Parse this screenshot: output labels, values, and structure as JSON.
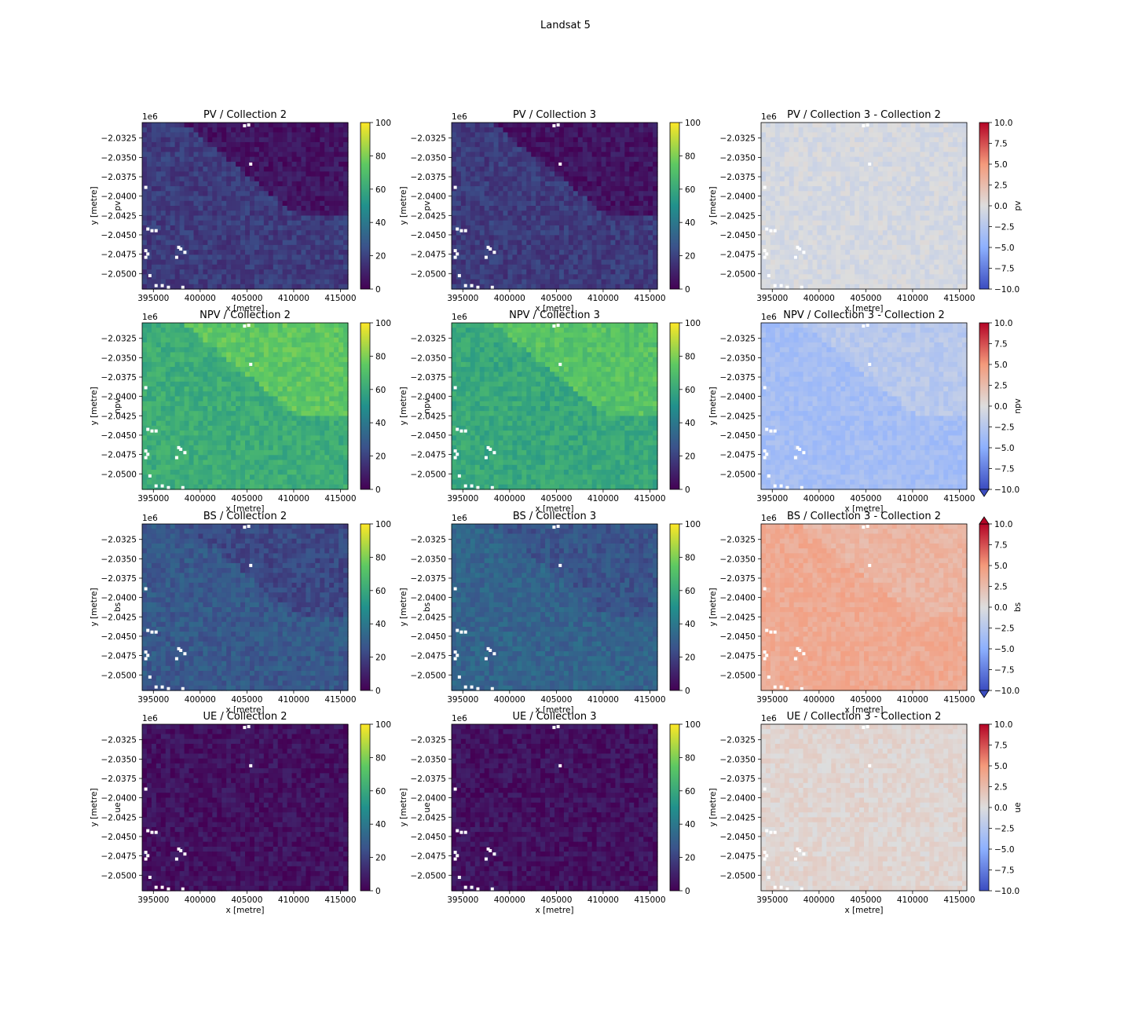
{
  "figure_title": "Landsat 5",
  "chart_data": [
    {
      "type": "heatmap",
      "band": "pv",
      "title": "PV / Collection 2",
      "xlabel": "x [metre]",
      "ylabel": "y [metre]",
      "y_offset_label": "1e6",
      "xticks": [
        "395000",
        "400000",
        "405000",
        "410000",
        "415000"
      ],
      "yticks": [
        "−2.0325",
        "−2.0350",
        "−2.0375",
        "−2.0400",
        "−2.0425",
        "−2.0450",
        "−2.0475",
        "−2.0500"
      ],
      "colorbar": {
        "label": "pv",
        "cmap": "viridis",
        "vmin": 0,
        "vmax": 100,
        "ticks": [
          "0",
          "20",
          "40",
          "60",
          "80",
          "100"
        ]
      },
      "mean_value": 18
    },
    {
      "type": "heatmap",
      "band": "pv",
      "title": "PV / Collection 3",
      "xlabel": "x [metre]",
      "ylabel": "y [metre]",
      "y_offset_label": "1e6",
      "xticks": [
        "395000",
        "400000",
        "405000",
        "410000",
        "415000"
      ],
      "yticks": [
        "−2.0325",
        "−2.0350",
        "−2.0375",
        "−2.0400",
        "−2.0425",
        "−2.0450",
        "−2.0475",
        "−2.0500"
      ],
      "colorbar": {
        "label": "pv",
        "cmap": "viridis",
        "vmin": 0,
        "vmax": 100,
        "ticks": [
          "0",
          "20",
          "40",
          "60",
          "80",
          "100"
        ]
      },
      "mean_value": 18
    },
    {
      "type": "heatmap",
      "band": "pv",
      "title": "PV / Collection 3 - Collection 2",
      "xlabel": "x [metre]",
      "ylabel": "y [metre]",
      "y_offset_label": "1e6",
      "xticks": [
        "395000",
        "400000",
        "405000",
        "410000",
        "415000"
      ],
      "yticks": [
        "−2.0325",
        "−2.0350",
        "−2.0375",
        "−2.0400",
        "−2.0425",
        "−2.0450",
        "−2.0475",
        "−2.0500"
      ],
      "colorbar": {
        "label": "pv",
        "cmap": "coolwarm",
        "vmin": -10,
        "vmax": 10,
        "ticks": [
          "−10.0",
          "−7.5",
          "−5.0",
          "−2.5",
          "0.0",
          "2.5",
          "5.0",
          "7.5",
          "10.0"
        ],
        "extend": "neither"
      },
      "mean_value": -0.5
    },
    {
      "type": "heatmap",
      "band": "npv",
      "title": "NPV / Collection 2",
      "xlabel": "x [metre]",
      "ylabel": "y [metre]",
      "y_offset_label": "1e6",
      "xticks": [
        "395000",
        "400000",
        "405000",
        "410000",
        "415000"
      ],
      "yticks": [
        "−2.0325",
        "−2.0350",
        "−2.0375",
        "−2.0400",
        "−2.0425",
        "−2.0450",
        "−2.0475",
        "−2.0500"
      ],
      "colorbar": {
        "label": "npv",
        "cmap": "viridis",
        "vmin": 0,
        "vmax": 100,
        "ticks": [
          "0",
          "20",
          "40",
          "60",
          "80",
          "100"
        ]
      },
      "mean_value": 62
    },
    {
      "type": "heatmap",
      "band": "npv",
      "title": "NPV / Collection 3",
      "xlabel": "x [metre]",
      "ylabel": "y [metre]",
      "y_offset_label": "1e6",
      "xticks": [
        "395000",
        "400000",
        "405000",
        "410000",
        "415000"
      ],
      "yticks": [
        "−2.0325",
        "−2.0350",
        "−2.0375",
        "−2.0400",
        "−2.0425",
        "−2.0450",
        "−2.0475",
        "−2.0500"
      ],
      "colorbar": {
        "label": "npv",
        "cmap": "viridis",
        "vmin": 0,
        "vmax": 100,
        "ticks": [
          "0",
          "20",
          "40",
          "60",
          "80",
          "100"
        ]
      },
      "mean_value": 60
    },
    {
      "type": "heatmap",
      "band": "npv",
      "title": "NPV / Collection 3 - Collection 2",
      "xlabel": "x [metre]",
      "ylabel": "y [metre]",
      "y_offset_label": "1e6",
      "xticks": [
        "395000",
        "400000",
        "405000",
        "410000",
        "415000"
      ],
      "yticks": [
        "−2.0325",
        "−2.0350",
        "−2.0375",
        "−2.0400",
        "−2.0425",
        "−2.0450",
        "−2.0475",
        "−2.0500"
      ],
      "colorbar": {
        "label": "npv",
        "cmap": "coolwarm",
        "vmin": -10,
        "vmax": 10,
        "ticks": [
          "−10.0",
          "−7.5",
          "−5.0",
          "−2.5",
          "0.0",
          "2.5",
          "5.0",
          "7.5",
          "10.0"
        ],
        "extend": "min"
      },
      "mean_value": -3.5
    },
    {
      "type": "heatmap",
      "band": "bs",
      "title": "BS / Collection 2",
      "xlabel": "x [metre]",
      "ylabel": "y [metre]",
      "y_offset_label": "1e6",
      "xticks": [
        "395000",
        "400000",
        "405000",
        "410000",
        "415000"
      ],
      "yticks": [
        "−2.0325",
        "−2.0350",
        "−2.0375",
        "−2.0400",
        "−2.0425",
        "−2.0450",
        "−2.0475",
        "−2.0500"
      ],
      "colorbar": {
        "label": "bs",
        "cmap": "viridis",
        "vmin": 0,
        "vmax": 100,
        "ticks": [
          "0",
          "20",
          "40",
          "60",
          "80",
          "100"
        ]
      },
      "mean_value": 28
    },
    {
      "type": "heatmap",
      "band": "bs",
      "title": "BS / Collection 3",
      "xlabel": "x [metre]",
      "ylabel": "y [metre]",
      "y_offset_label": "1e6",
      "xticks": [
        "395000",
        "400000",
        "405000",
        "410000",
        "415000"
      ],
      "yticks": [
        "−2.0325",
        "−2.0350",
        "−2.0375",
        "−2.0400",
        "−2.0425",
        "−2.0450",
        "−2.0475",
        "−2.0500"
      ],
      "colorbar": {
        "label": "bs",
        "cmap": "viridis",
        "vmin": 0,
        "vmax": 100,
        "ticks": [
          "0",
          "20",
          "40",
          "60",
          "80",
          "100"
        ]
      },
      "mean_value": 32
    },
    {
      "type": "heatmap",
      "band": "bs",
      "title": "BS / Collection 3 - Collection 2",
      "xlabel": "x [metre]",
      "ylabel": "y [metre]",
      "y_offset_label": "1e6",
      "xticks": [
        "395000",
        "400000",
        "405000",
        "410000",
        "415000"
      ],
      "yticks": [
        "−2.0325",
        "−2.0350",
        "−2.0375",
        "−2.0400",
        "−2.0425",
        "−2.0450",
        "−2.0475",
        "−2.0500"
      ],
      "colorbar": {
        "label": "bs",
        "cmap": "coolwarm",
        "vmin": -10,
        "vmax": 10,
        "ticks": [
          "−10.0",
          "−7.5",
          "−5.0",
          "−2.5",
          "0.0",
          "2.5",
          "5.0",
          "7.5",
          "10.0"
        ],
        "extend": "both"
      },
      "mean_value": 3.8
    },
    {
      "type": "heatmap",
      "band": "ue",
      "title": "UE / Collection 2",
      "xlabel": "x [metre]",
      "ylabel": "y [metre]",
      "y_offset_label": "1e6",
      "xticks": [
        "395000",
        "400000",
        "405000",
        "410000",
        "415000"
      ],
      "yticks": [
        "−2.0325",
        "−2.0350",
        "−2.0375",
        "−2.0400",
        "−2.0425",
        "−2.0450",
        "−2.0475",
        "−2.0500"
      ],
      "colorbar": {
        "label": "ue",
        "cmap": "viridis",
        "vmin": 0,
        "vmax": 100,
        "ticks": [
          "0",
          "20",
          "40",
          "60",
          "80",
          "100"
        ]
      },
      "mean_value": 5
    },
    {
      "type": "heatmap",
      "band": "ue",
      "title": "UE / Collection 3",
      "xlabel": "x [metre]",
      "ylabel": "y [metre]",
      "y_offset_label": "1e6",
      "xticks": [
        "395000",
        "400000",
        "405000",
        "410000",
        "415000"
      ],
      "yticks": [
        "−2.0325",
        "−2.0350",
        "−2.0375",
        "−2.0400",
        "−2.0425",
        "−2.0450",
        "−2.0475",
        "−2.0500"
      ],
      "colorbar": {
        "label": "ue",
        "cmap": "viridis",
        "vmin": 0,
        "vmax": 100,
        "ticks": [
          "0",
          "20",
          "40",
          "60",
          "80",
          "100"
        ]
      },
      "mean_value": 5
    },
    {
      "type": "heatmap",
      "band": "ue",
      "title": "UE / Collection 3 - Collection 2",
      "xlabel": "x [metre]",
      "ylabel": "y [metre]",
      "y_offset_label": "1e6",
      "xticks": [
        "395000",
        "400000",
        "405000",
        "410000",
        "415000"
      ],
      "yticks": [
        "−2.0325",
        "−2.0350",
        "−2.0375",
        "−2.0400",
        "−2.0425",
        "−2.0450",
        "−2.0475",
        "−2.0500"
      ],
      "colorbar": {
        "label": "ue",
        "cmap": "coolwarm",
        "vmin": -10,
        "vmax": 10,
        "ticks": [
          "−10.0",
          "−7.5",
          "−5.0",
          "−2.5",
          "0.0",
          "2.5",
          "5.0",
          "7.5",
          "10.0"
        ],
        "extend": "neither"
      },
      "mean_value": 0.6
    }
  ]
}
